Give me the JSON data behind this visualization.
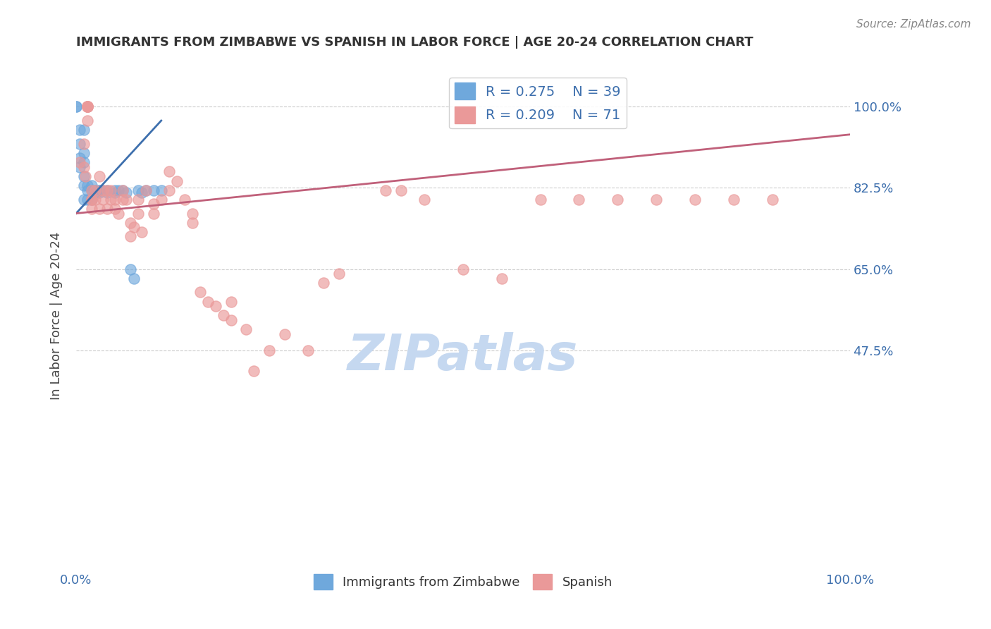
{
  "title": "IMMIGRANTS FROM ZIMBABWE VS SPANISH IN LABOR FORCE | AGE 20-24 CORRELATION CHART",
  "source": "Source: ZipAtlas.com",
  "xlabel": "",
  "ylabel": "In Labor Force | Age 20-24",
  "x_label_bottom": "",
  "xlim": [
    0.0,
    1.0
  ],
  "ylim": [
    0.0,
    1.1
  ],
  "yticks": [
    0.475,
    0.65,
    0.825,
    1.0
  ],
  "ytick_labels": [
    "47.5%",
    "65.0%",
    "82.5%",
    "100.0%"
  ],
  "xtick_labels": [
    "0.0%",
    "100.0%"
  ],
  "legend_blue_r": "R = 0.275",
  "legend_blue_n": "N = 39",
  "legend_pink_r": "R = 0.209",
  "legend_pink_n": "N = 71",
  "blue_color": "#6fa8dc",
  "pink_color": "#ea9999",
  "blue_line_color": "#3d6fad",
  "pink_line_color": "#c0607a",
  "watermark": "ZIPatlas",
  "watermark_color": "#c5d8f0",
  "blue_dots_x": [
    0.0,
    0.0,
    0.005,
    0.005,
    0.005,
    0.005,
    0.01,
    0.01,
    0.01,
    0.01,
    0.01,
    0.01,
    0.015,
    0.015,
    0.015,
    0.02,
    0.02,
    0.02,
    0.025,
    0.025,
    0.025,
    0.03,
    0.03,
    0.03,
    0.035,
    0.04,
    0.04,
    0.05,
    0.05,
    0.055,
    0.06,
    0.065,
    0.07,
    0.075,
    0.08,
    0.085,
    0.09,
    0.1,
    0.11
  ],
  "blue_dots_y": [
    1.0,
    1.0,
    0.95,
    0.92,
    0.89,
    0.87,
    0.95,
    0.9,
    0.88,
    0.85,
    0.83,
    0.8,
    0.83,
    0.82,
    0.8,
    0.83,
    0.82,
    0.8,
    0.82,
    0.82,
    0.815,
    0.82,
    0.82,
    0.815,
    0.82,
    0.82,
    0.815,
    0.82,
    0.815,
    0.82,
    0.82,
    0.815,
    0.65,
    0.63,
    0.82,
    0.815,
    0.82,
    0.82,
    0.82
  ],
  "pink_dots_x": [
    0.005,
    0.01,
    0.01,
    0.012,
    0.015,
    0.015,
    0.015,
    0.015,
    0.015,
    0.015,
    0.02,
    0.02,
    0.02,
    0.02,
    0.025,
    0.025,
    0.03,
    0.03,
    0.035,
    0.035,
    0.04,
    0.04,
    0.045,
    0.045,
    0.05,
    0.05,
    0.055,
    0.06,
    0.06,
    0.065,
    0.07,
    0.07,
    0.075,
    0.08,
    0.08,
    0.085,
    0.09,
    0.1,
    0.1,
    0.11,
    0.12,
    0.12,
    0.13,
    0.14,
    0.15,
    0.15,
    0.16,
    0.17,
    0.18,
    0.19,
    0.2,
    0.2,
    0.22,
    0.23,
    0.25,
    0.27,
    0.3,
    0.32,
    0.34,
    0.4,
    0.42,
    0.45,
    0.5,
    0.55,
    0.6,
    0.65,
    0.7,
    0.75,
    0.8,
    0.85,
    0.9
  ],
  "pink_dots_y": [
    0.88,
    0.92,
    0.87,
    0.85,
    1.0,
    1.0,
    1.0,
    1.0,
    1.0,
    0.97,
    0.82,
    0.8,
    0.8,
    0.78,
    0.82,
    0.8,
    0.85,
    0.78,
    0.82,
    0.8,
    0.82,
    0.78,
    0.82,
    0.8,
    0.8,
    0.78,
    0.77,
    0.82,
    0.8,
    0.8,
    0.75,
    0.72,
    0.74,
    0.8,
    0.77,
    0.73,
    0.82,
    0.79,
    0.77,
    0.8,
    0.86,
    0.82,
    0.84,
    0.8,
    0.77,
    0.75,
    0.6,
    0.58,
    0.57,
    0.55,
    0.58,
    0.54,
    0.52,
    0.43,
    0.475,
    0.51,
    0.475,
    0.62,
    0.64,
    0.82,
    0.82,
    0.8,
    0.65,
    0.63,
    0.8,
    0.8,
    0.8,
    0.8,
    0.8,
    0.8,
    0.8
  ],
  "blue_trendline_x": [
    0.0,
    0.11
  ],
  "blue_trendline_y": [
    0.77,
    0.97
  ],
  "pink_trendline_x": [
    0.0,
    1.0
  ],
  "pink_trendline_y": [
    0.77,
    0.94
  ]
}
